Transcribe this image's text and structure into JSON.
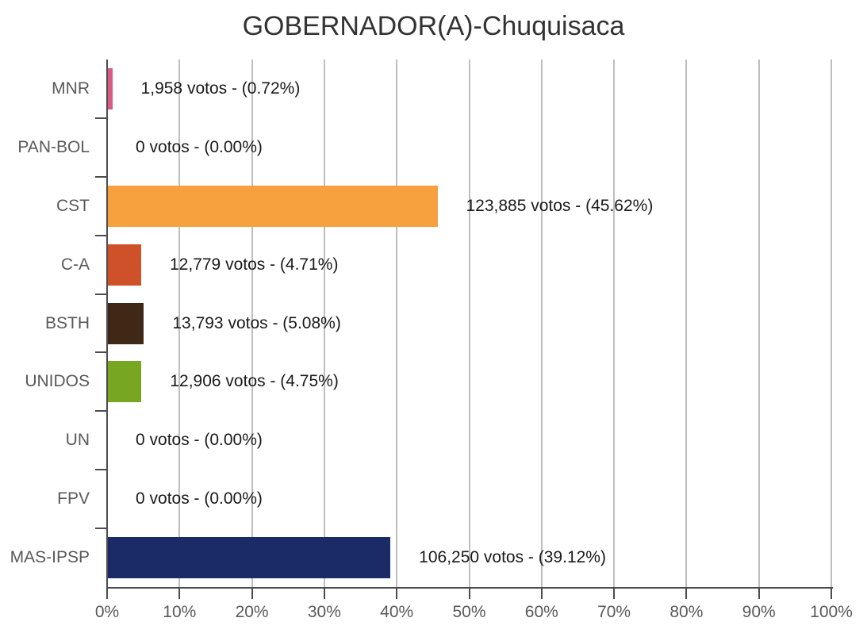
{
  "chart_data": {
    "type": "bar",
    "orientation": "horizontal",
    "title": "GOBERNADOR(A)-Chuquisaca",
    "categories": [
      "MNR",
      "PAN-BOL",
      "CST",
      "C-A",
      "BSTH",
      "UNIDOS",
      "UN",
      "FPV",
      "MAS-IPSP"
    ],
    "series": [
      {
        "name": "votos",
        "values": [
          1958,
          0,
          123885,
          12779,
          13793,
          12906,
          0,
          0,
          106250
        ]
      }
    ],
    "percentages": [
      0.72,
      0.0,
      45.62,
      4.71,
      5.08,
      4.75,
      0.0,
      0.0,
      39.12
    ],
    "data_labels": [
      "1,958 votos - (0.72%)",
      "0 votos - (0.00%)",
      "123,885 votos - (45.62%)",
      "12,779 votos - (4.71%)",
      "13,793 votos - (5.08%)",
      "12,906 votos - (4.75%)",
      "0 votos - (0.00%)",
      "0 votos - (0.00%)",
      "106,250 votos - (39.12%)"
    ],
    "bar_colors": [
      "#d75b82",
      null,
      "#f6a13e",
      "#cf5129",
      "#402817",
      "#77a621",
      null,
      null,
      "#1a2b68"
    ],
    "x_tick_labels": [
      "0%",
      "10%",
      "20%",
      "30%",
      "40%",
      "50%",
      "60%",
      "70%",
      "80%",
      "90%",
      "100%"
    ],
    "xlim": [
      0,
      100
    ],
    "grid": true,
    "legend_position": "none",
    "xlabel": "",
    "ylabel": ""
  },
  "colors": {
    "background": "#ffffff",
    "title_text": "#333333",
    "axis": "#4d4d4d",
    "axis_text": "#595959",
    "gridline": "#bebebe",
    "data_label_text": "#1a1a1a"
  }
}
